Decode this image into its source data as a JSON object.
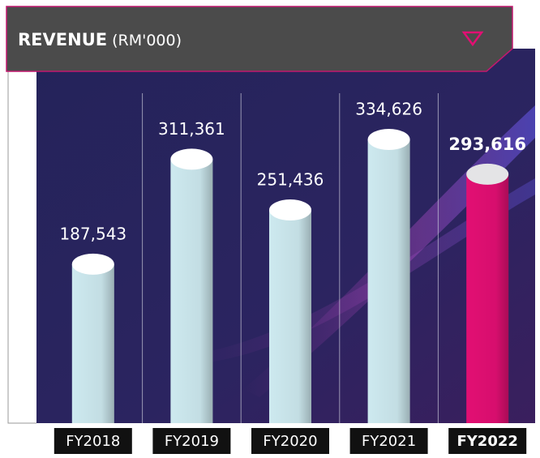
{
  "chart_data": {
    "type": "cylinder-bar",
    "title": "REVENUE",
    "subtitle": "(RM'000)",
    "categories": [
      "FY2018",
      "FY2019",
      "FY2020",
      "FY2021",
      "FY2022"
    ],
    "values": [
      187543,
      311361,
      251436,
      334626,
      293616
    ],
    "value_labels": [
      "187,543",
      "311,361",
      "251,436",
      "334,626",
      "293,616"
    ],
    "colors": [
      "#cde9ef",
      "#cde9ef",
      "#cde9ef",
      "#cde9ef",
      "#e20f73"
    ],
    "emphasis": [
      false,
      false,
      false,
      false,
      true
    ]
  }
}
